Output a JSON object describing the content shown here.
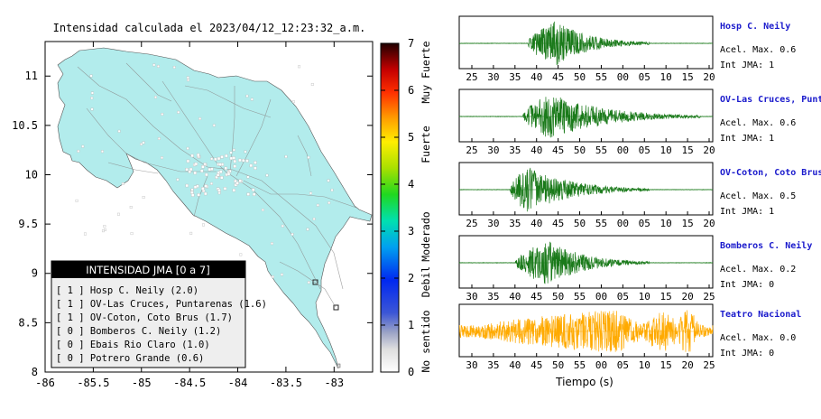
{
  "map": {
    "title": "Intensidad calculada el 2023/04/12_12:23:32_a.m.",
    "x_ticks": [
      "-86",
      "-85.5",
      "-85",
      "-84.5",
      "-84",
      "-83.5",
      "-83"
    ],
    "y_ticks": [
      "11",
      "10.5",
      "10",
      "9.5",
      "9",
      "8.5",
      "8"
    ],
    "xlim": [
      -86,
      -82.6
    ],
    "ylim": [
      8,
      11.35
    ],
    "land_color": "#b2ecec",
    "legend": {
      "title": "INTENSIDAD JMA [0 a 7]",
      "items": [
        "[ 1 ]  Hosp C. Neily (2.0)",
        "[ 1 ]  OV-Las Cruces, Puntarenas (1.6)",
        "[ 1 ]  OV-Coton, Coto Brus (1.7)",
        "[ 0 ]  Bomberos C. Neily (1.2)",
        "[ 0 ]  Ebais Rio Claro (1.0)",
        "[ 0 ]  Potrero Grande (0.6)"
      ]
    }
  },
  "colorbar": {
    "ticks": [
      "7",
      "6",
      "5",
      "4",
      "3",
      "2",
      "1",
      "0"
    ],
    "labels": [
      "Muy Fuerte",
      "Fuerte",
      "Moderado",
      "Debil",
      "No sentido"
    ]
  },
  "chart_data": {
    "type": "line",
    "xlabel": "Tiempo (s)",
    "traces": [
      {
        "name": "Hosp C. Neily",
        "accel": "Acel. Max. 0.6",
        "int": "Int JMA: 1",
        "color": "#1a7a1a",
        "ticks": [
          "25",
          "30",
          "35",
          "40",
          "45",
          "50",
          "55",
          "00",
          "05",
          "10",
          "15",
          "20"
        ],
        "onset": 0.27,
        "peak": 0.38,
        "end": 0.75,
        "amplitude": 0.95,
        "background": 0.01
      },
      {
        "name": "OV-Las Cruces, Puntar",
        "accel": "Acel. Max. 0.6",
        "int": "Int JMA: 1",
        "color": "#1a7a1a",
        "ticks": [
          "25",
          "30",
          "35",
          "40",
          "45",
          "50",
          "55",
          "00",
          "05",
          "10",
          "15",
          "20"
        ],
        "onset": 0.25,
        "peak": 0.36,
        "end": 0.95,
        "amplitude": 0.95,
        "background": 0.01
      },
      {
        "name": "OV-Coton, Coto Brus",
        "accel": "Acel. Max. 0.5",
        "int": "Int JMA: 1",
        "color": "#1a7a1a",
        "ticks": [
          "25",
          "30",
          "35",
          "40",
          "45",
          "50",
          "55",
          "00",
          "05",
          "10",
          "15",
          "20"
        ],
        "onset": 0.2,
        "peak": 0.27,
        "end": 0.75,
        "amplitude": 0.95,
        "background": 0.01
      },
      {
        "name": "Bomberos C. Neily",
        "accel": "Acel. Max. 0.2",
        "int": "Int JMA: 0",
        "color": "#1a7a1a",
        "ticks": [
          "30",
          "35",
          "40",
          "45",
          "50",
          "55",
          "00",
          "05",
          "10",
          "15",
          "20",
          "25"
        ],
        "onset": 0.22,
        "peak": 0.35,
        "end": 0.75,
        "amplitude": 0.95,
        "background": 0.01
      },
      {
        "name": "Teatro Nacional",
        "accel": "Acel. Max. 0.0",
        "int": "Int JMA: 0",
        "color": "#ffaa00",
        "ticks": [
          "30",
          "35",
          "40",
          "45",
          "50",
          "55",
          "00",
          "05",
          "10",
          "15",
          "20",
          "25"
        ],
        "onset": 0.0,
        "peak": 0.6,
        "end": 1.0,
        "amplitude": 0.9,
        "background": 0.25
      }
    ]
  }
}
